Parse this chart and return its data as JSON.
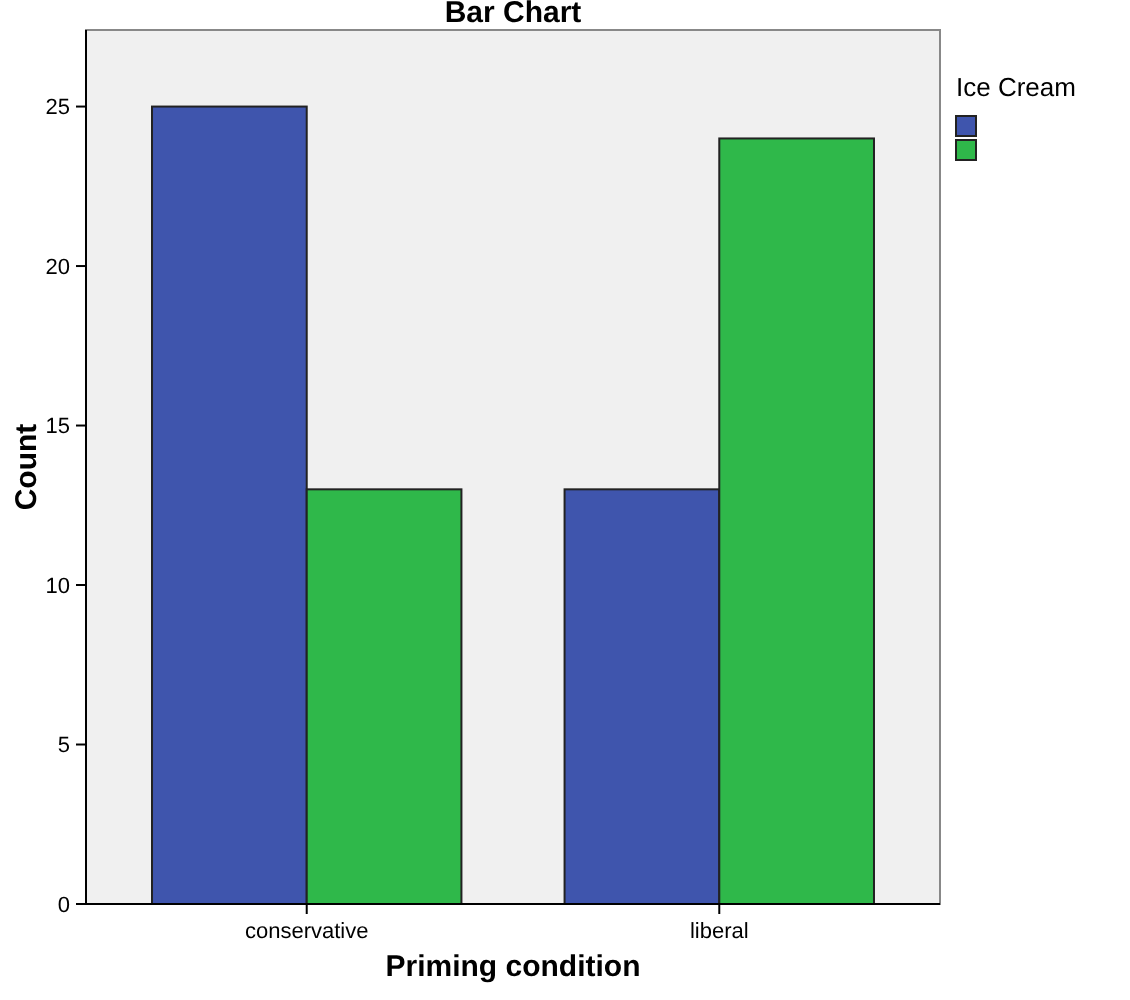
{
  "chart_data": {
    "type": "bar",
    "title": "Bar Chart",
    "xlabel": "Priming condition",
    "ylabel": "Count",
    "legend_title": "Ice Cream",
    "categories": [
      "conservative",
      "liberal"
    ],
    "series": [
      {
        "color": "#3f55ad",
        "values": [
          25,
          13
        ]
      },
      {
        "color": "#2fb84a",
        "values": [
          13,
          24
        ]
      }
    ],
    "ylim": [
      0,
      27.4
    ],
    "yticks": [
      0,
      5,
      10,
      15,
      20,
      25
    ],
    "grid": false
  }
}
